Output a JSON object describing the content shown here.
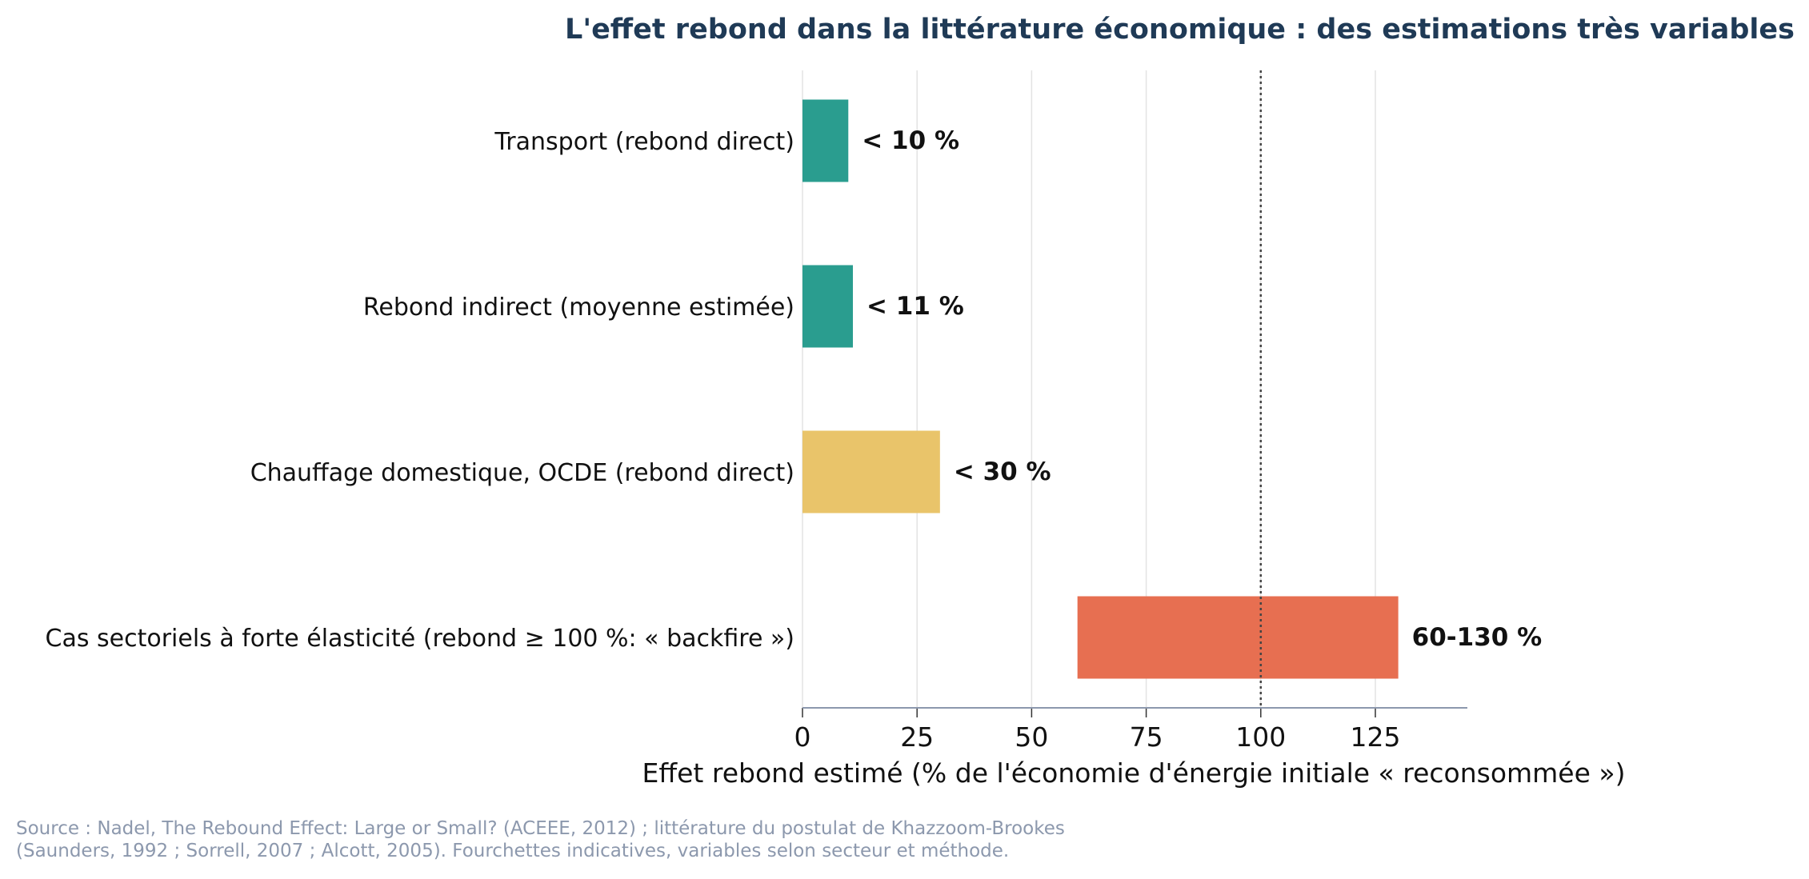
{
  "chart_data": {
    "type": "bar",
    "orientation": "horizontal",
    "title": "L'effet rebond dans la littérature économique : des estimations très variables",
    "xlabel": "Effet rebond estimé (% de l'économie d'énergie initiale « reconsommée »)",
    "ylabel": "",
    "xlim": [
      0,
      145
    ],
    "xticks": [
      0,
      25,
      50,
      75,
      100,
      125
    ],
    "grid": "vertical",
    "reference_line": 100,
    "bars": [
      {
        "category": "Transport (rebond direct)",
        "start": 0,
        "end": 10,
        "label": "< 10 %",
        "color": "#2a9d8f"
      },
      {
        "category": "Rebond indirect (moyenne estimée)",
        "start": 0,
        "end": 11,
        "label": "< 11 %",
        "color": "#2a9d8f"
      },
      {
        "category": "Chauffage domestique, OCDE (rebond direct)",
        "start": 0,
        "end": 30,
        "label": "< 30 %",
        "color": "#e9c46a"
      },
      {
        "category": "Cas sectoriels à forte élasticité (rebond ≥ 100 %: « backfire »)",
        "start": 60,
        "end": 130,
        "label": "60-130 %",
        "color": "#e76f51"
      }
    ]
  },
  "source": {
    "line1": "Source : Nadel, The Rebound Effect: Large or Small? (ACEEE, 2012) ; littérature du postulat de Khazzoom-Brookes",
    "line2": "(Saunders, 1992 ; Sorrell, 2007 ; Alcott, 2005). Fourchettes indicatives, variables selon secteur et méthode."
  }
}
